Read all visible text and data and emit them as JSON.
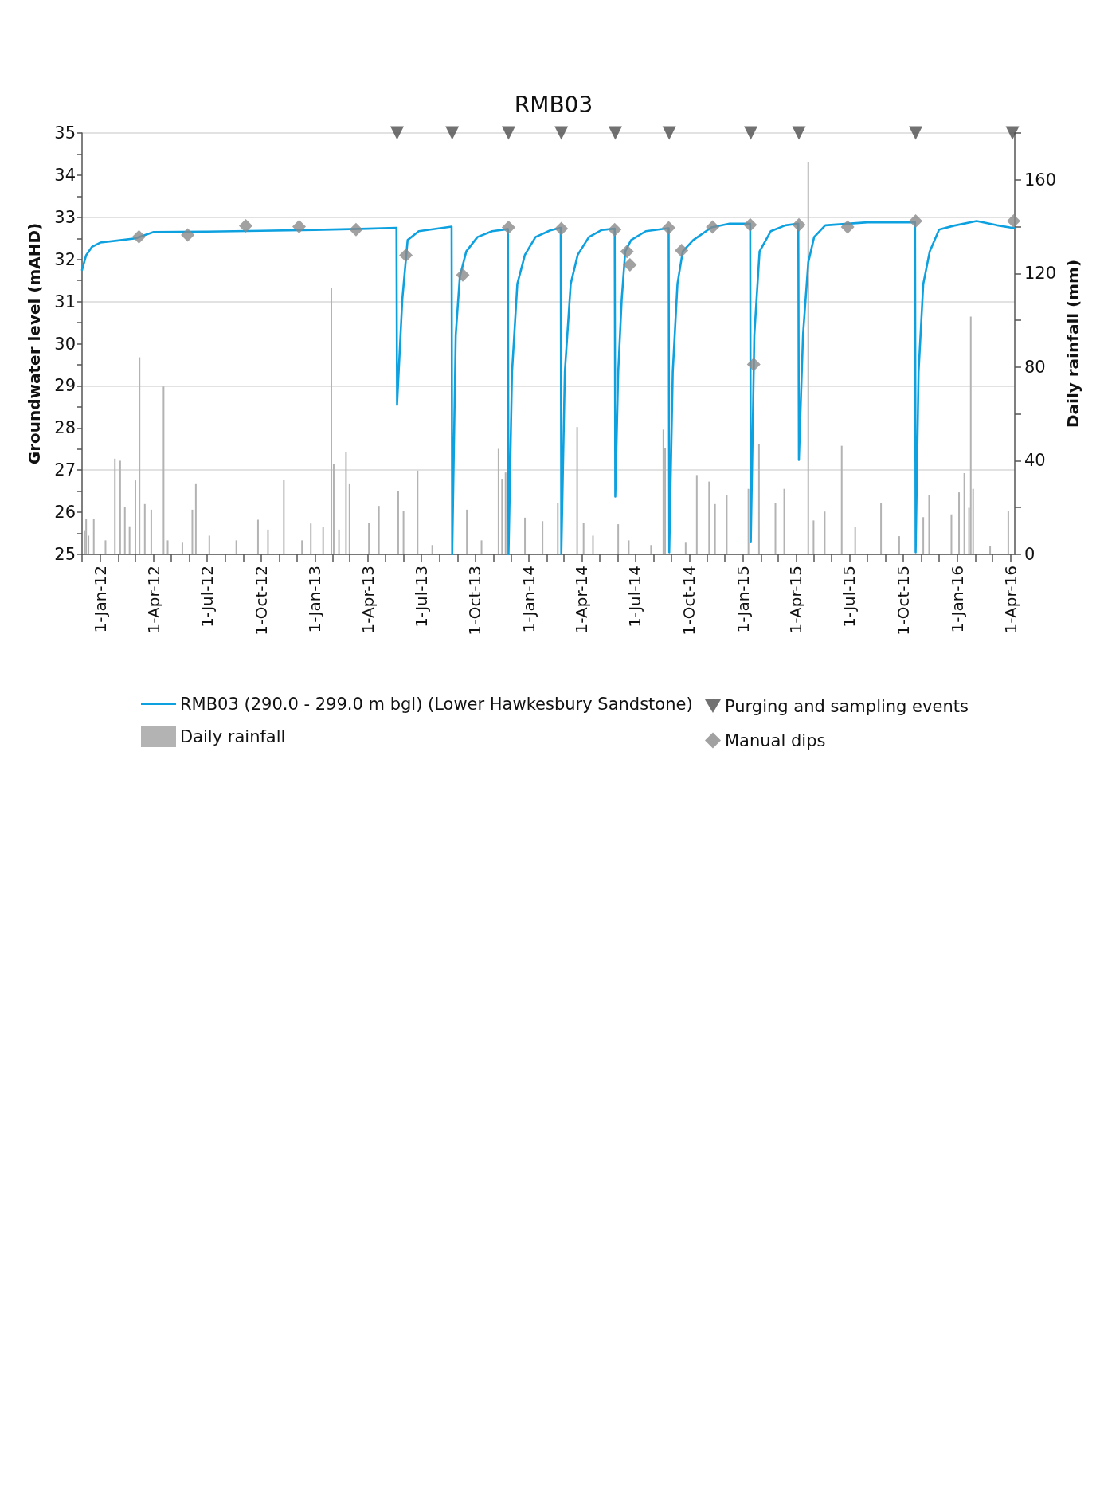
{
  "chart_data": {
    "type": "line",
    "title": "RMB03",
    "ylabel": "Groundwater level (mAHD)",
    "y2label": "Daily rainfall (mm)",
    "xlim": [
      "2011-12-01",
      "2016-04-08"
    ],
    "xticks": [
      {
        "value": "2011-12-01",
        "label": null
      },
      {
        "value": "2012-01-01",
        "label": "1-Jan-12"
      },
      {
        "value": "2012-02-01",
        "label": null
      },
      {
        "value": "2012-03-01",
        "label": null
      },
      {
        "value": "2012-04-01",
        "label": "1-Apr-12"
      },
      {
        "value": "2012-05-01",
        "label": null
      },
      {
        "value": "2012-06-01",
        "label": null
      },
      {
        "value": "2012-07-01",
        "label": "1-Jul-12"
      },
      {
        "value": "2012-08-01",
        "label": null
      },
      {
        "value": "2012-09-01",
        "label": null
      },
      {
        "value": "2012-10-01",
        "label": "1-Oct-12"
      },
      {
        "value": "2012-11-01",
        "label": null
      },
      {
        "value": "2012-12-01",
        "label": null
      },
      {
        "value": "2013-01-01",
        "label": "1-Jan-13"
      },
      {
        "value": "2013-02-01",
        "label": null
      },
      {
        "value": "2013-03-01",
        "label": null
      },
      {
        "value": "2013-04-01",
        "label": "1-Apr-13"
      },
      {
        "value": "2013-05-01",
        "label": null
      },
      {
        "value": "2013-06-01",
        "label": null
      },
      {
        "value": "2013-07-01",
        "label": "1-Jul-13"
      },
      {
        "value": "2013-08-01",
        "label": null
      },
      {
        "value": "2013-09-01",
        "label": null
      },
      {
        "value": "2013-10-01",
        "label": "1-Oct-13"
      },
      {
        "value": "2013-11-01",
        "label": null
      },
      {
        "value": "2013-12-01",
        "label": null
      },
      {
        "value": "2014-01-01",
        "label": "1-Jan-14"
      },
      {
        "value": "2014-02-01",
        "label": null
      },
      {
        "value": "2014-03-01",
        "label": null
      },
      {
        "value": "2014-04-01",
        "label": "1-Apr-14"
      },
      {
        "value": "2014-05-01",
        "label": null
      },
      {
        "value": "2014-06-01",
        "label": null
      },
      {
        "value": "2014-07-01",
        "label": "1-Jul-14"
      },
      {
        "value": "2014-08-01",
        "label": null
      },
      {
        "value": "2014-09-01",
        "label": null
      },
      {
        "value": "2014-10-01",
        "label": "1-Oct-14"
      },
      {
        "value": "2014-11-01",
        "label": null
      },
      {
        "value": "2014-12-01",
        "label": null
      },
      {
        "value": "2015-01-01",
        "label": "1-Jan-15"
      },
      {
        "value": "2015-02-01",
        "label": null
      },
      {
        "value": "2015-03-01",
        "label": null
      },
      {
        "value": "2015-04-01",
        "label": "1-Apr-15"
      },
      {
        "value": "2015-05-01",
        "label": null
      },
      {
        "value": "2015-06-01",
        "label": null
      },
      {
        "value": "2015-07-01",
        "label": "1-Jul-15"
      },
      {
        "value": "2015-08-01",
        "label": null
      },
      {
        "value": "2015-09-01",
        "label": null
      },
      {
        "value": "2015-10-01",
        "label": "1-Oct-15"
      },
      {
        "value": "2015-11-01",
        "label": null
      },
      {
        "value": "2015-12-01",
        "label": null
      },
      {
        "value": "2016-01-01",
        "label": "1-Jan-16"
      },
      {
        "value": "2016-02-01",
        "label": null
      },
      {
        "value": "2016-03-01",
        "label": null
      },
      {
        "value": "2016-04-01",
        "label": "1-Apr-16"
      }
    ],
    "ylim": [
      25,
      35
    ],
    "yticks": [
      25,
      {
        "value": 25.5,
        "label": null
      },
      26,
      {
        "value": 26.5,
        "label": null
      },
      27,
      {
        "value": 27.5,
        "label": null
      },
      28,
      {
        "value": 28.5,
        "label": null
      },
      29,
      {
        "value": 29.5,
        "label": null
      },
      30,
      {
        "value": 30.5,
        "label": null
      },
      31,
      {
        "value": 31.5,
        "label": null
      },
      32,
      {
        "value": 32.5,
        "label": null
      },
      33,
      {
        "value": 33.5,
        "label": null
      },
      34,
      {
        "value": 34.5,
        "label": null
      },
      35
    ],
    "y2lim": [
      0,
      180
    ],
    "y2ticks": [
      0,
      {
        "value": 20,
        "label": null
      },
      40,
      {
        "value": 60,
        "label": null
      },
      80,
      {
        "value": 100,
        "label": null
      },
      120,
      {
        "value": 140,
        "label": null
      },
      160,
      {
        "value": 180,
        "label": null
      }
    ],
    "grid": "y",
    "legend": "bottom",
    "series": [
      {
        "name": "RMB03 (290.0 - 299.0 m bgl) (Lower Hawkesbury Sandstone)",
        "color": "#0ea1e0",
        "marker": "none",
        "line_style": "solid",
        "x": [
          "2011-12-01",
          "2011-12-08",
          "2011-12-18",
          "2012-01-01",
          "2012-02-01",
          "2012-03-01",
          "2012-04-01",
          "2012-07-01",
          "2012-10-01",
          "2013-01-01",
          "2013-04-01",
          "2013-05-20",
          "2013-05-21",
          "2013-05-30",
          "2013-06-08",
          "2013-06-27",
          "2013-08-22",
          "2013-08-23",
          "2013-08-29",
          "2013-09-05",
          "2013-09-16",
          "2013-10-05",
          "2013-10-30",
          "2013-11-26",
          "2013-11-27",
          "2013-12-03",
          "2013-12-12",
          "2013-12-25",
          "2014-01-12",
          "2014-02-06",
          "2014-02-24",
          "2014-02-25",
          "2014-03-03",
          "2014-03-13",
          "2014-03-25",
          "2014-04-13",
          "2014-05-05",
          "2014-05-27",
          "2014-05-28",
          "2014-06-02",
          "2014-06-08",
          "2014-06-14",
          "2014-06-24",
          "2014-07-19",
          "2014-08-27",
          "2014-08-28",
          "2014-09-03",
          "2014-09-11",
          "2014-09-20",
          "2014-10-08",
          "2014-11-08",
          "2014-12-09",
          "2015-01-13",
          "2015-01-14",
          "2015-01-20",
          "2015-01-29",
          "2015-02-17",
          "2015-03-14",
          "2015-04-05",
          "2015-04-06",
          "2015-04-13",
          "2015-04-22",
          "2015-05-02",
          "2015-05-21",
          "2015-08-01",
          "2015-10-21",
          "2015-10-22",
          "2015-10-27",
          "2015-11-04",
          "2015-11-15",
          "2015-12-01",
          "2015-12-26",
          "2016-02-03",
          "2016-03-09",
          "2016-04-08"
        ],
        "values": [
          31.75,
          32.1,
          32.3,
          32.4,
          32.45,
          32.5,
          32.65,
          32.66,
          32.68,
          32.7,
          32.73,
          32.75,
          28.55,
          31.06,
          32.46,
          32.67,
          32.78,
          25.0,
          30.2,
          31.59,
          32.19,
          32.53,
          32.67,
          32.72,
          25.0,
          29.33,
          31.42,
          32.11,
          32.53,
          32.69,
          32.75,
          25.0,
          29.33,
          31.42,
          32.11,
          32.53,
          32.7,
          32.73,
          26.37,
          29.33,
          31.06,
          32.19,
          32.46,
          32.67,
          32.74,
          25.05,
          29.33,
          31.42,
          32.19,
          32.46,
          32.76,
          32.85,
          32.85,
          25.29,
          30.2,
          32.19,
          32.67,
          32.81,
          32.85,
          27.24,
          30.2,
          31.93,
          32.53,
          32.81,
          32.88,
          32.88,
          25.05,
          29.33,
          31.42,
          32.19,
          32.71,
          32.8,
          32.91,
          32.81,
          32.74
        ]
      },
      {
        "name": "Daily rainfall",
        "type": "bar",
        "axis": "y2",
        "color": "#b3b3b3",
        "x": [
          "2011-12-05",
          "2011-12-08",
          "2011-12-12",
          "2011-12-21",
          "2012-01-10",
          "2012-01-26",
          "2012-02-04",
          "2012-02-12",
          "2012-02-20",
          "2012-03-01",
          "2012-03-08",
          "2012-03-17",
          "2012-03-28",
          "2012-04-17",
          "2012-04-18",
          "2012-04-25",
          "2012-05-20",
          "2012-06-06",
          "2012-06-12",
          "2012-07-05",
          "2012-08-20",
          "2012-09-26",
          "2012-10-13",
          "2012-11-09",
          "2012-12-10",
          "2012-12-25",
          "2013-01-15",
          "2013-01-29",
          "2013-02-02",
          "2013-02-11",
          "2013-02-23",
          "2013-03-01",
          "2013-04-03",
          "2013-04-20",
          "2013-05-23",
          "2013-06-01",
          "2013-06-23",
          "2013-06-25",
          "2013-07-20",
          "2013-09-17",
          "2013-10-12",
          "2013-11-10",
          "2013-11-16",
          "2013-11-22",
          "2013-12-25",
          "2014-01-24",
          "2014-02-19",
          "2014-03-24",
          "2014-04-04",
          "2014-04-20",
          "2014-06-02",
          "2014-06-20",
          "2014-07-28",
          "2014-08-18",
          "2014-08-21",
          "2014-09-25",
          "2014-10-14",
          "2014-11-04",
          "2014-11-14",
          "2014-12-04",
          "2015-01-10",
          "2015-01-28",
          "2015-02-25",
          "2015-03-12",
          "2015-04-22",
          "2015-05-01",
          "2015-05-20",
          "2015-06-18",
          "2015-07-11",
          "2015-08-24",
          "2015-09-24",
          "2015-11-04",
          "2015-11-14",
          "2015-12-22",
          "2016-01-04",
          "2016-01-13",
          "2016-01-21",
          "2016-01-24",
          "2016-01-28",
          "2016-02-26",
          "2016-03-28"
        ],
        "values": [
          10,
          15,
          8,
          15,
          6,
          40.9,
          40,
          20.2,
          12,
          31.6,
          84.2,
          21.5,
          19.1,
          null,
          71.7,
          6,
          5,
          19.1,
          30,
          8,
          6,
          14.8,
          10.6,
          32,
          6,
          13.2,
          11.8,
          113.9,
          38.6,
          10.6,
          43.6,
          30,
          13.3,
          20.7,
          26.9,
          18.7,
          null,
          35.8,
          4,
          19.1,
          6,
          45.1,
          32.3,
          35,
          15.7,
          14.2,
          21.8,
          54.4,
          13.4,
          8,
          12.9,
          6,
          4,
          53.3,
          45.6,
          5,
          33.9,
          31.1,
          21.5,
          25.3,
          28,
          47.1,
          21.8,
          28,
          167.4,
          14.5,
          18.3,
          46.4,
          11.8,
          21.8,
          7.8,
          15.9,
          25.3,
          17.1,
          26.5,
          34.7,
          19.9,
          101.6,
          28,
          3.6,
          18.7
        ]
      },
      {
        "name": "Purging and sampling events",
        "type": "scatter",
        "color": "#4d4d4d",
        "marker": "triangle",
        "x": [
          "2013-05-21",
          "2013-08-23",
          "2013-11-27",
          "2014-02-25",
          "2014-05-28",
          "2014-08-28",
          "2015-01-14",
          "2015-04-06",
          "2015-10-22",
          "2016-04-04"
        ],
        "values": [
          35,
          35,
          35,
          35,
          35,
          35,
          35,
          35,
          35,
          35
        ]
      },
      {
        "name": "Manual dips",
        "type": "scatter",
        "color": "#8a8a8a",
        "marker": "diamond",
        "x": [
          "2012-03-07",
          "2012-05-29",
          "2012-09-05",
          "2012-12-05",
          "2013-03-12",
          "2013-06-05",
          "2013-09-10",
          "2013-11-27",
          "2014-02-25",
          "2014-05-27",
          "2014-06-17",
          "2014-06-22",
          "2014-08-27",
          "2014-09-18",
          "2014-11-10",
          "2015-01-13",
          "2015-01-19",
          "2015-04-06",
          "2015-06-28",
          "2015-10-22",
          "2016-04-06"
        ],
        "values": [
          32.54,
          32.58,
          32.8,
          32.78,
          32.71,
          32.1,
          31.63,
          32.76,
          32.73,
          32.71,
          32.19,
          31.87,
          32.75,
          32.21,
          32.77,
          32.82,
          29.51,
          32.82,
          32.77,
          32.91,
          32.91
        ]
      }
    ]
  }
}
